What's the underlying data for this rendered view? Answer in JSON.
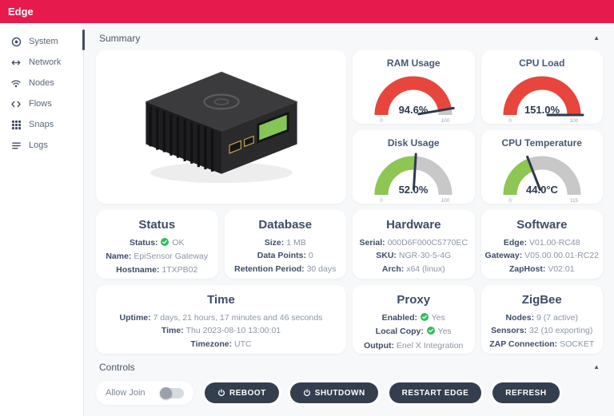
{
  "app": {
    "title": "Edge",
    "accent_color": "#e61a4d"
  },
  "sidebar": {
    "items": [
      {
        "icon": "system-icon",
        "label": "System",
        "active": true
      },
      {
        "icon": "network-icon",
        "label": "Network",
        "active": false
      },
      {
        "icon": "nodes-icon",
        "label": "Nodes",
        "active": false
      },
      {
        "icon": "flows-icon",
        "label": "Flows",
        "active": false
      },
      {
        "icon": "snaps-icon",
        "label": "Snaps",
        "active": false
      },
      {
        "icon": "logs-icon",
        "label": "Logs",
        "active": false
      }
    ]
  },
  "sections": {
    "summary": {
      "label": "Summary",
      "collapse_icon": "chevron-up-icon"
    },
    "controls": {
      "label": "Controls",
      "collapse_icon": "chevron-up-icon"
    }
  },
  "chart_data": [
    {
      "type": "gauge",
      "title": "RAM Usage",
      "value": 94.6,
      "display": "94.6%",
      "min": 0,
      "max": 100,
      "min_label": "0",
      "max_label": "100",
      "color": "#e8463c",
      "track_color": "#c8c8c8"
    },
    {
      "type": "gauge",
      "title": "CPU Load",
      "value": 151.0,
      "display": "151.0%",
      "min": 0,
      "max": 100,
      "min_label": "0",
      "max_label": "100",
      "color": "#e8463c",
      "track_color": "#c8c8c8"
    },
    {
      "type": "gauge",
      "title": "Disk Usage",
      "value": 52.0,
      "display": "52.0%",
      "min": 0,
      "max": 100,
      "min_label": "0",
      "max_label": "100",
      "color": "#8dc653",
      "track_color": "#c8c8c8"
    },
    {
      "type": "gauge",
      "title": "CPU Temperature",
      "value": 44.0,
      "display": "44.0°C",
      "min": 0,
      "max": 115,
      "min_label": "0",
      "max_label": "115",
      "color": "#8dc653",
      "track_color": "#c8c8c8"
    }
  ],
  "info_cards": [
    {
      "title": "Status",
      "wide": false,
      "lines": [
        {
          "label": "Status:",
          "check": true,
          "value": "OK"
        },
        {
          "label": "Name:",
          "check": false,
          "value": "EpiSensor Gateway"
        },
        {
          "label": "Hostname:",
          "check": false,
          "value": "1TXPB02"
        }
      ]
    },
    {
      "title": "Database",
      "wide": false,
      "lines": [
        {
          "label": "Size:",
          "check": false,
          "value": "1 MB"
        },
        {
          "label": "Data Points:",
          "check": false,
          "value": "0"
        },
        {
          "label": "Retention Period:",
          "check": false,
          "value": "30 days"
        }
      ]
    },
    {
      "title": "Hardware",
      "wide": false,
      "lines": [
        {
          "label": "Serial:",
          "check": false,
          "value": "000D6F000C5770EC"
        },
        {
          "label": "SKU:",
          "check": false,
          "value": "NGR-30-5-4G"
        },
        {
          "label": "Arch:",
          "check": false,
          "value": "x64 (linux)"
        }
      ]
    },
    {
      "title": "Software",
      "wide": false,
      "lines": [
        {
          "label": "Edge:",
          "check": false,
          "value": "V01.00-RC48"
        },
        {
          "label": "Gateway:",
          "check": false,
          "value": "V05.00.00.01-RC22"
        },
        {
          "label": "ZapHost:",
          "check": false,
          "value": "V02.01"
        }
      ]
    },
    {
      "title": "Time",
      "wide": true,
      "lines": [
        {
          "label": "Uptime:",
          "check": false,
          "value": "7 days, 21 hours, 17 minutes and 46 seconds"
        },
        {
          "label": "Time:",
          "check": false,
          "value": "Thu 2023-08-10 13:00:01"
        },
        {
          "label": "Timezone:",
          "check": false,
          "value": "UTC"
        }
      ]
    },
    {
      "title": "Proxy",
      "wide": false,
      "lines": [
        {
          "label": "Enabled:",
          "check": true,
          "value": "Yes"
        },
        {
          "label": "Local Copy:",
          "check": true,
          "value": "Yes"
        },
        {
          "label": "Output:",
          "check": false,
          "value": "Enel X Integration"
        }
      ]
    },
    {
      "title": "ZigBee",
      "wide": false,
      "lines": [
        {
          "label": "Nodes:",
          "check": false,
          "value": "9 (7 active)"
        },
        {
          "label": "Sensors:",
          "check": false,
          "value": "32 (10 exporting)"
        },
        {
          "label": "ZAP Connection:",
          "check": false,
          "value": "SOCKET"
        }
      ]
    }
  ],
  "controls": {
    "allow_join_label": "Allow Join",
    "allow_join_state": "off",
    "buttons": [
      {
        "label": "REBOOT",
        "icon": "power-icon"
      },
      {
        "label": "SHUTDOWN",
        "icon": "power-icon"
      },
      {
        "label": "RESTART EDGE",
        "icon": null
      },
      {
        "label": "REFRESH",
        "icon": null
      }
    ]
  }
}
